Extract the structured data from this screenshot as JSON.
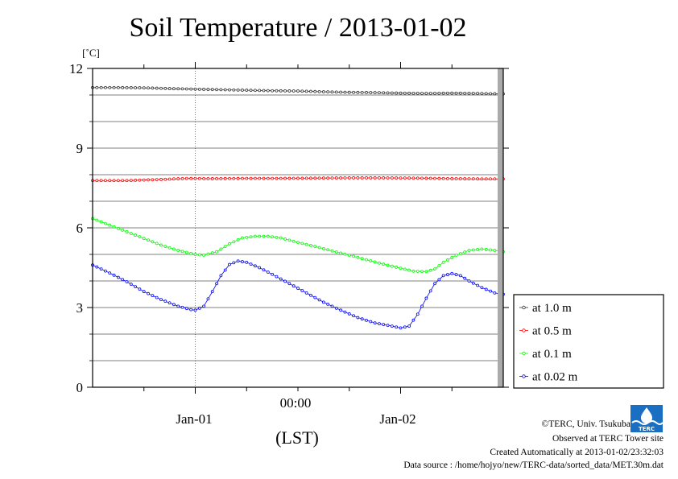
{
  "title": "Soil Temperature / 2013-01-02",
  "ylabel_unit": "[˚C]",
  "xlabel": "(LST)",
  "x_tick_time_label": "00:00",
  "x_day_labels": [
    "Jan-01",
    "Jan-02"
  ],
  "y_ticks": [
    "12",
    "9",
    "6",
    "3",
    "0"
  ],
  "credits": {
    "copyright": "©TERC, Univ. Tsukuba",
    "observed": "Observed at TERC Tower site",
    "created": "Created Automatically at 2013-01-02/23:32:03",
    "source": "Data source : /home/hojyo/new/TERC-data/sorted_data/MET.30m.dat"
  },
  "logo_text": "TERC",
  "chart_data": {
    "type": "line",
    "title": "Soil Temperature / 2013-01-02",
    "xlabel": "(LST)",
    "ylabel": "[˚C]",
    "ylim": [
      0,
      12
    ],
    "xlim_hours": [
      -12,
      36
    ],
    "grid": true,
    "legend_position": "right",
    "x_ticks": [
      {
        "hour": 0,
        "label": "00:00"
      }
    ],
    "day_labels": [
      {
        "hour": -12,
        "label": "Jan-01"
      },
      {
        "hour": 12,
        "label": "Jan-02"
      }
    ],
    "series": [
      {
        "name": "at 1.0 m",
        "color": "#333333",
        "points": [
          [
            -12,
            11.28
          ],
          [
            -9,
            11.28
          ],
          [
            -6,
            11.27
          ],
          [
            -3,
            11.24
          ],
          [
            0,
            11.22
          ],
          [
            3,
            11.2
          ],
          [
            6,
            11.18
          ],
          [
            9,
            11.16
          ],
          [
            12,
            11.15
          ],
          [
            15,
            11.12
          ],
          [
            18,
            11.1
          ],
          [
            21,
            11.09
          ],
          [
            24,
            11.07
          ],
          [
            27,
            11.06
          ],
          [
            30,
            11.07
          ],
          [
            33,
            11.06
          ],
          [
            36,
            11.04
          ]
        ]
      },
      {
        "name": "at 0.5 m",
        "color": "#ff0000",
        "points": [
          [
            -12,
            7.78
          ],
          [
            -8,
            7.78
          ],
          [
            -4,
            7.82
          ],
          [
            -1,
            7.86
          ],
          [
            2,
            7.85
          ],
          [
            6,
            7.86
          ],
          [
            10,
            7.86
          ],
          [
            14,
            7.87
          ],
          [
            18,
            7.88
          ],
          [
            22,
            7.88
          ],
          [
            26,
            7.87
          ],
          [
            30,
            7.85
          ],
          [
            34,
            7.84
          ],
          [
            36,
            7.84
          ]
        ]
      },
      {
        "name": "at 0.1 m",
        "color": "#00ff00",
        "points": [
          [
            -12,
            6.35
          ],
          [
            -10,
            6.1
          ],
          [
            -8,
            5.85
          ],
          [
            -6,
            5.6
          ],
          [
            -4,
            5.35
          ],
          [
            -2,
            5.15
          ],
          [
            0,
            5.0
          ],
          [
            1,
            4.97
          ],
          [
            2.5,
            5.1
          ],
          [
            4,
            5.4
          ],
          [
            5.5,
            5.62
          ],
          [
            7,
            5.68
          ],
          [
            8.5,
            5.68
          ],
          [
            10,
            5.62
          ],
          [
            12,
            5.45
          ],
          [
            14,
            5.3
          ],
          [
            16,
            5.13
          ],
          [
            18,
            4.97
          ],
          [
            20,
            4.8
          ],
          [
            22,
            4.63
          ],
          [
            24,
            4.48
          ],
          [
            25.5,
            4.37
          ],
          [
            27,
            4.35
          ],
          [
            28,
            4.45
          ],
          [
            29,
            4.7
          ],
          [
            30.5,
            4.97
          ],
          [
            32,
            5.15
          ],
          [
            33.5,
            5.2
          ],
          [
            35,
            5.15
          ],
          [
            36,
            5.1
          ]
        ]
      },
      {
        "name": "at 0.02 m",
        "color": "#0000ff",
        "points": [
          [
            -12,
            4.6
          ],
          [
            -10,
            4.3
          ],
          [
            -8,
            3.97
          ],
          [
            -6,
            3.6
          ],
          [
            -4,
            3.3
          ],
          [
            -2,
            3.05
          ],
          [
            -0.5,
            2.92
          ],
          [
            0,
            2.9
          ],
          [
            1,
            3.05
          ],
          [
            2,
            3.6
          ],
          [
            3,
            4.2
          ],
          [
            4,
            4.62
          ],
          [
            5,
            4.75
          ],
          [
            6,
            4.7
          ],
          [
            7.5,
            4.5
          ],
          [
            9,
            4.25
          ],
          [
            11,
            3.9
          ],
          [
            13,
            3.55
          ],
          [
            15,
            3.2
          ],
          [
            17,
            2.9
          ],
          [
            19,
            2.62
          ],
          [
            21,
            2.42
          ],
          [
            23,
            2.3
          ],
          [
            24,
            2.23
          ],
          [
            25,
            2.3
          ],
          [
            26,
            2.75
          ],
          [
            27,
            3.35
          ],
          [
            28,
            3.9
          ],
          [
            29,
            4.2
          ],
          [
            30,
            4.28
          ],
          [
            31,
            4.2
          ],
          [
            32,
            4.0
          ],
          [
            33.5,
            3.75
          ],
          [
            35,
            3.55
          ],
          [
            36,
            3.5
          ]
        ]
      }
    ]
  }
}
